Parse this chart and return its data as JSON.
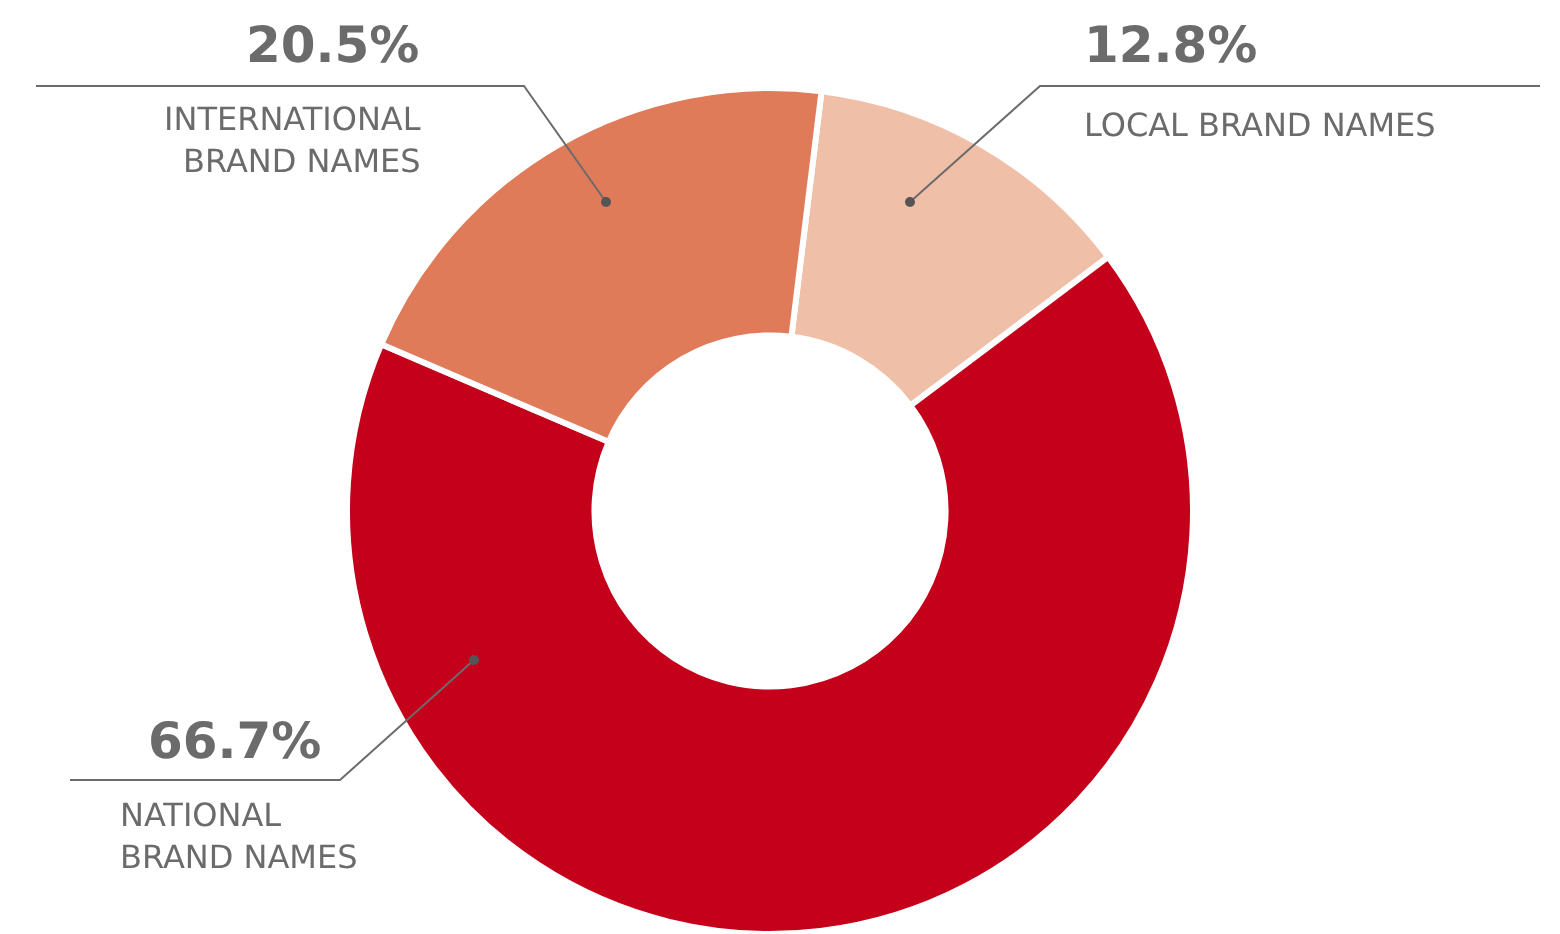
{
  "chart_data": {
    "type": "donut",
    "categories": [
      "LOCAL BRAND NAMES",
      "NATIONAL BRAND NAMES",
      "INTERNATIONAL BRAND NAMES"
    ],
    "values": [
      12.8,
      66.7,
      20.5
    ],
    "colors": [
      "#f0bfa8",
      "#c4001a",
      "#e07b5a"
    ],
    "value_labels": [
      "12.8%",
      "66.7%",
      "20.5%"
    ],
    "legend": false
  }
}
